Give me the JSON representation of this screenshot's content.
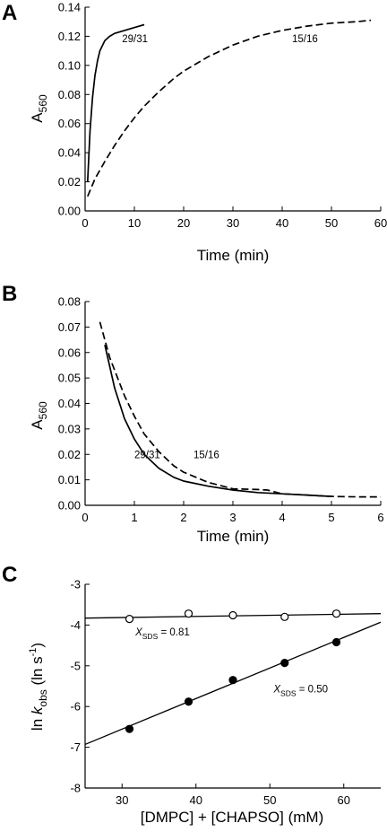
{
  "chart_data": [
    {
      "panel": "A",
      "type": "line",
      "xlabel": "Time (min)",
      "ylabel": "A",
      "ylabel_sub": "560",
      "xlim": [
        0,
        60
      ],
      "ylim": [
        0,
        0.14
      ],
      "xticks": [
        "0",
        "10",
        "20",
        "30",
        "40",
        "50",
        "60"
      ],
      "yticks": [
        "0.00",
        "0.02",
        "0.04",
        "0.06",
        "0.08",
        "0.10",
        "0.12",
        "0.14"
      ],
      "grid": false,
      "series": [
        {
          "name": "29/31",
          "style": "solid",
          "x": [
            0.5,
            1.0,
            1.5,
            2.0,
            2.5,
            3.0,
            4.0,
            5.0,
            6.0,
            7.0,
            8.0,
            9.0,
            10.0,
            11.0,
            12.0
          ],
          "y": [
            0.02,
            0.055,
            0.078,
            0.093,
            0.103,
            0.11,
            0.117,
            0.12,
            0.122,
            0.123,
            0.124,
            0.125,
            0.126,
            0.127,
            0.128
          ]
        },
        {
          "name": "15/16",
          "style": "dashed",
          "x": [
            0.5,
            2,
            4,
            6,
            8,
            10,
            12,
            15,
            18,
            20,
            25,
            30,
            35,
            40,
            45,
            50,
            55,
            58
          ],
          "y": [
            0.01,
            0.022,
            0.034,
            0.045,
            0.055,
            0.064,
            0.072,
            0.082,
            0.091,
            0.096,
            0.106,
            0.114,
            0.12,
            0.124,
            0.127,
            0.129,
            0.13,
            0.131
          ]
        }
      ],
      "annotations": [
        {
          "text": "29/31",
          "x": 7.5,
          "y": 0.116
        },
        {
          "text": "15/16",
          "x": 42,
          "y": 0.116
        }
      ]
    },
    {
      "panel": "B",
      "type": "line",
      "xlabel": "Time (min)",
      "ylabel": "A",
      "ylabel_sub": "560",
      "xlim": [
        0,
        6
      ],
      "ylim": [
        0,
        0.08
      ],
      "xticks": [
        "0",
        "1",
        "2",
        "3",
        "4",
        "5",
        "6"
      ],
      "yticks": [
        "0.00",
        "0.01",
        "0.02",
        "0.03",
        "0.04",
        "0.05",
        "0.06",
        "0.07",
        "0.08"
      ],
      "grid": false,
      "series": [
        {
          "name": "29/31",
          "style": "solid",
          "x": [
            0.4,
            0.6,
            0.8,
            1.0,
            1.2,
            1.5,
            1.8,
            2.0,
            2.5,
            3.0,
            3.5,
            4.0,
            4.5,
            5.0
          ],
          "y": [
            0.063,
            0.046,
            0.034,
            0.026,
            0.02,
            0.0145,
            0.011,
            0.0095,
            0.0075,
            0.006,
            0.005,
            0.0045,
            0.004,
            0.0035
          ]
        },
        {
          "name": "15/16",
          "style": "dashed",
          "x": [
            0.3,
            0.5,
            0.8,
            1.0,
            1.2,
            1.5,
            1.8,
            2.0,
            2.5,
            3.0,
            3.5,
            3.7,
            4.0,
            4.5,
            5.0,
            5.5,
            6.0
          ],
          "y": [
            0.072,
            0.058,
            0.043,
            0.035,
            0.028,
            0.021,
            0.0155,
            0.013,
            0.009,
            0.0065,
            0.0062,
            0.006,
            0.0045,
            0.004,
            0.0035,
            0.0033,
            0.0033
          ]
        }
      ],
      "annotations": [
        {
          "text": "29/31",
          "x": 1.0,
          "y": 0.0185
        },
        {
          "text": "15/16",
          "x": 2.2,
          "y": 0.0185
        }
      ]
    },
    {
      "panel": "C",
      "type": "scatter",
      "xlabel": "[DMPC] + [CHAPSO] (mM)",
      "ylabel_parts": [
        "ln ",
        "k",
        "obs",
        " (ln s",
        "-1",
        ")"
      ],
      "xlim": [
        25,
        65
      ],
      "ylim": [
        -8,
        -3
      ],
      "xticks": [
        "30",
        "40",
        "50",
        "60"
      ],
      "yticks": [
        "-8",
        "-7",
        "-6",
        "-5",
        "-4",
        "-3"
      ],
      "grid": false,
      "series": [
        {
          "name": "X_SDS = 0.81",
          "marker": "open-circle",
          "x": [
            31,
            39,
            45,
            52,
            59
          ],
          "y": [
            -3.85,
            -3.72,
            -3.76,
            -3.8,
            -3.72
          ],
          "fit": {
            "x": [
              25,
              65
            ],
            "y": [
              -3.83,
              -3.72
            ]
          }
        },
        {
          "name": "X_SDS = 0.50",
          "marker": "filled-circle",
          "x": [
            31,
            39,
            45,
            52,
            59
          ],
          "y": [
            -6.55,
            -5.88,
            -5.35,
            -4.93,
            -4.42
          ],
          "fit": {
            "x": [
              25,
              65
            ],
            "y": [
              -6.93,
              -3.93
            ]
          }
        }
      ],
      "annotations": [
        {
          "text": "X",
          "sub": "SDS",
          "tail": " = 0.81",
          "x": 31.8,
          "y": -4.25
        },
        {
          "text": "X",
          "sub": "SDS",
          "tail": " = 0.50",
          "x": 50.5,
          "y": -5.65
        }
      ]
    }
  ]
}
